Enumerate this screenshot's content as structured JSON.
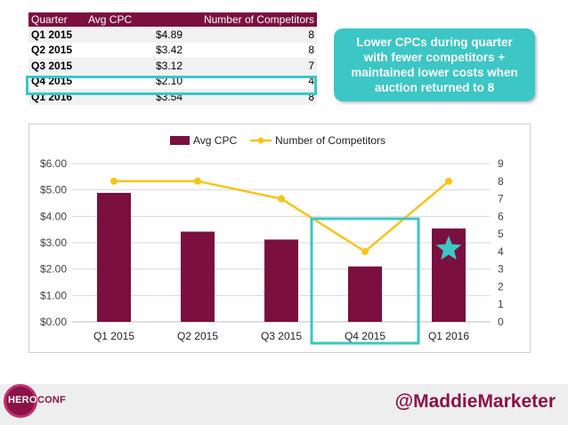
{
  "table": {
    "headers": [
      "Quarter",
      "Avg CPC",
      "Number of Competitors"
    ],
    "rows": [
      [
        "Q1 2015",
        "$4.89",
        "8"
      ],
      [
        "Q2 2015",
        "$3.42",
        "8"
      ],
      [
        "Q3 2015",
        "$3.12",
        "7"
      ],
      [
        "Q4 2015",
        "$2.10",
        "4"
      ],
      [
        "Q1 2016",
        "$3.54",
        "8"
      ]
    ]
  },
  "callout": {
    "text": "Lower CPCs during quarter with fewer competitors + maintained lower costs when auction returned to 8"
  },
  "chart_data": {
    "type": "bar",
    "categories": [
      "Q1 2015",
      "Q2 2015",
      "Q3 2015",
      "Q4 2015",
      "Q1 2016"
    ],
    "series": [
      {
        "name": "Avg CPC",
        "type": "bar",
        "axis": "left",
        "values": [
          4.89,
          3.42,
          3.12,
          2.1,
          3.54
        ],
        "color": "#7b0f3f"
      },
      {
        "name": "Number of Competitors",
        "type": "line",
        "axis": "right",
        "values": [
          8,
          8,
          7,
          4,
          8
        ],
        "color": "#f5c518"
      }
    ],
    "left_axis": {
      "ticks": [
        "$0.00",
        "$1.00",
        "$2.00",
        "$3.00",
        "$4.00",
        "$5.00",
        "$6.00"
      ],
      "ylim": [
        0,
        6
      ]
    },
    "right_axis": {
      "ticks": [
        "0",
        "1",
        "2",
        "3",
        "4",
        "5",
        "6",
        "7",
        "8",
        "9"
      ],
      "ylim": [
        0,
        9
      ]
    },
    "legend_position": "top-center",
    "highlight_category": "Q4 2015",
    "star_category": "Q1 2016",
    "grid": true
  },
  "colors": {
    "bar": "#7b0f3f",
    "line": "#f5c518",
    "highlight": "#3cc6c6",
    "grid": "#d9d9d9"
  },
  "footer": {
    "logo_part1": "HERO",
    "logo_part2": "CONF",
    "handle": "@MaddieMarketer"
  }
}
